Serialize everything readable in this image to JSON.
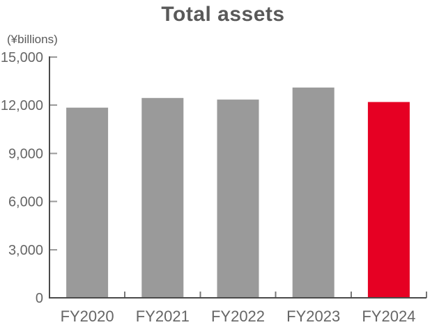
{
  "chart_data": {
    "type": "bar",
    "title": "Total assets",
    "ylabel": "(¥billions)",
    "xlabel": "",
    "categories": [
      "FY2020",
      "FY2021",
      "FY2022",
      "FY2023",
      "FY2024"
    ],
    "values": [
      11850,
      12450,
      12350,
      13100,
      12200
    ],
    "highlight_category": "FY2024",
    "ylim": [
      0,
      15000
    ],
    "yticks": [
      0,
      3000,
      6000,
      9000,
      12000,
      15000
    ],
    "ytick_labels": [
      "0",
      "3,000",
      "6,000",
      "9,000",
      "12,000",
      "15,000"
    ],
    "grid": false,
    "legend": "none"
  },
  "colors": {
    "background": "#FFFFFF",
    "bar_default": "#9A9A9A",
    "bar_highlight": "#E60023",
    "axis_line": "#4A4A4A",
    "y_tick": "#999999",
    "x_tick": "#777777",
    "title_text": "#595959",
    "tick_text": "#666666"
  }
}
